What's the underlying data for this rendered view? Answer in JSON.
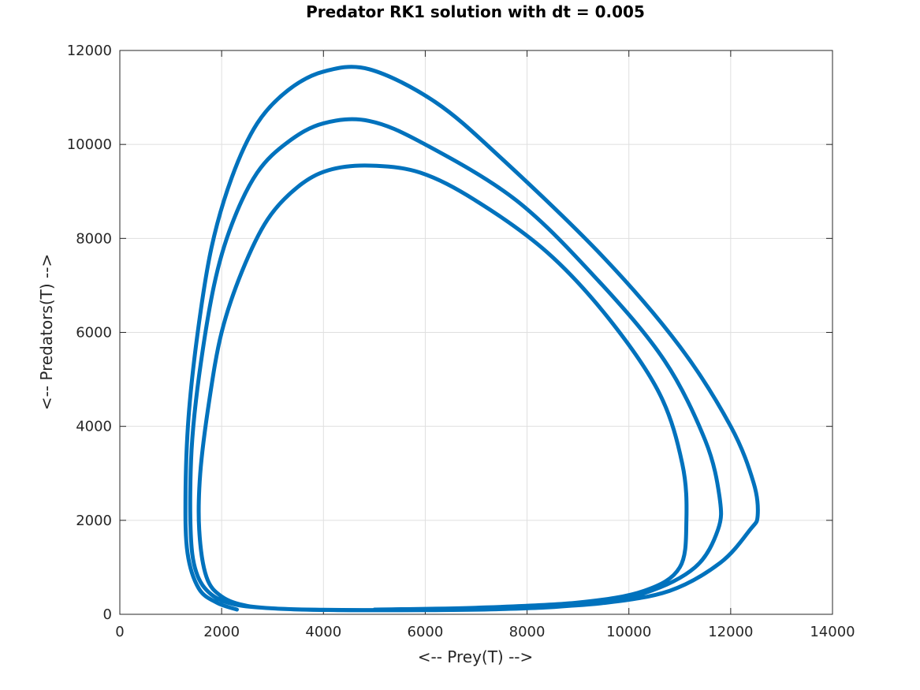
{
  "chart_data": {
    "type": "line",
    "title": "Predator RK1 solution with dt = 0.005",
    "xlabel": "<-- Prey(T) -->",
    "ylabel": "<-- Predators(T) -->",
    "xlim": [
      0,
      14000
    ],
    "ylim": [
      0,
      12000
    ],
    "xticks": [
      0,
      2000,
      4000,
      6000,
      8000,
      10000,
      12000,
      14000
    ],
    "yticks": [
      0,
      2000,
      4000,
      6000,
      8000,
      10000,
      12000
    ],
    "xtick_labels": [
      "0",
      "2000",
      "4000",
      "6000",
      "8000",
      "10000",
      "12000",
      "14000"
    ],
    "ytick_labels": [
      "0",
      "2000",
      "4000",
      "6000",
      "8000",
      "10000",
      "12000"
    ],
    "grid": true,
    "series_color": "#0072BD",
    "series": [
      {
        "x": [
          5000,
          7000,
          9000,
          10300,
          11000,
          11130,
          11050,
          10600,
          9600,
          8400,
          7000,
          5900,
          4900,
          4100,
          3500,
          2900,
          2400,
          2000,
          1750,
          1580,
          1560,
          1700,
          2000,
          2500,
          3300,
          4200,
          5000,
          6000,
          7500,
          9000,
          10300,
          11300,
          11750,
          11780,
          11500,
          10700,
          9400,
          7800,
          6000,
          4900,
          4000,
          3300,
          2700,
          2200,
          1850,
          1560,
          1410,
          1390,
          1500,
          1800,
          2300,
          3100,
          4000,
          5000,
          6500,
          8000,
          9500,
          10800,
          11800,
          12380,
          12530,
          12450,
          12000,
          11000,
          9500,
          7500,
          6200,
          4900,
          4000,
          3300,
          2700,
          2200,
          1800,
          1530,
          1350,
          1290,
          1330,
          1550,
          1900,
          2300
        ],
        "y": [
          100,
          140,
          250,
          500,
          1000,
          2000,
          3200,
          4700,
          6300,
          7700,
          8800,
          9400,
          9550,
          9450,
          9100,
          8400,
          7300,
          6000,
          4500,
          3000,
          1800,
          800,
          380,
          180,
          110,
          90,
          85,
          88,
          110,
          200,
          450,
          1000,
          1800,
          2500,
          3700,
          5400,
          7100,
          8800,
          10000,
          10500,
          10450,
          10050,
          9400,
          8300,
          7000,
          5100,
          3500,
          1800,
          900,
          420,
          200,
          120,
          95,
          90,
          100,
          140,
          240,
          500,
          1100,
          1800,
          2100,
          2800,
          4000,
          5700,
          7600,
          9700,
          10900,
          11600,
          11550,
          11150,
          10450,
          9300,
          7800,
          6000,
          4200,
          2500,
          1300,
          550,
          250,
          100
        ]
      }
    ]
  }
}
